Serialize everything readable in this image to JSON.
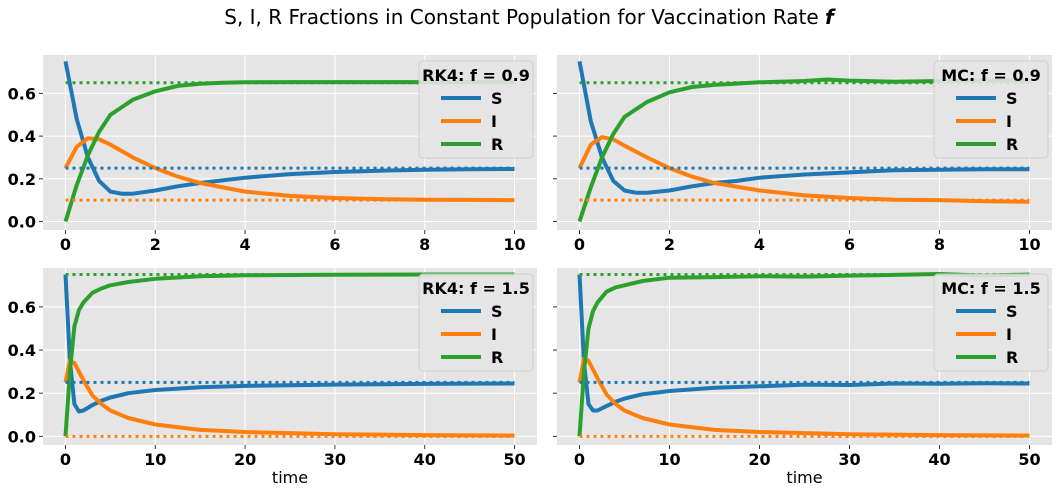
{
  "figure": {
    "title": "S, I, R Fractions in Constant Population for Vaccination Rate ",
    "title_italic": "f"
  },
  "colors": {
    "S": "#1f77b4",
    "I": "#ff7f0e",
    "R": "#2ca02c"
  },
  "chart_data": [
    {
      "type": "line",
      "legend_title": "RK4: f = 0.9",
      "legend_placement": "top-right",
      "xlabel": "",
      "ylabel": "",
      "xlim": [
        -0.5,
        10.5
      ],
      "ylim": [
        -0.04,
        0.78
      ],
      "xticks": [
        0,
        2,
        4,
        6,
        8,
        10
      ],
      "yticks": [
        0.0,
        0.2,
        0.4,
        0.6
      ],
      "grid": true,
      "series": [
        {
          "name": "S",
          "color": "#1f77b4",
          "x": [
            0,
            0.25,
            0.5,
            0.75,
            1,
            1.25,
            1.5,
            2,
            2.5,
            3,
            4,
            5,
            6,
            7,
            8,
            9,
            10
          ],
          "y": [
            0.75,
            0.48,
            0.3,
            0.19,
            0.14,
            0.13,
            0.13,
            0.145,
            0.165,
            0.18,
            0.205,
            0.222,
            0.232,
            0.238,
            0.242,
            0.245,
            0.246
          ]
        },
        {
          "name": "I",
          "color": "#ff7f0e",
          "x": [
            0,
            0.25,
            0.5,
            0.75,
            1,
            1.5,
            2,
            2.5,
            3,
            4,
            5,
            6,
            7,
            8,
            9,
            10
          ],
          "y": [
            0.25,
            0.35,
            0.39,
            0.385,
            0.36,
            0.3,
            0.25,
            0.21,
            0.18,
            0.14,
            0.12,
            0.11,
            0.105,
            0.102,
            0.101,
            0.1
          ]
        },
        {
          "name": "R",
          "color": "#2ca02c",
          "x": [
            0,
            0.25,
            0.5,
            0.75,
            1,
            1.5,
            2,
            2.5,
            3,
            3.5,
            4,
            5,
            6,
            8,
            10
          ],
          "y": [
            0.0,
            0.17,
            0.31,
            0.42,
            0.5,
            0.57,
            0.61,
            0.635,
            0.645,
            0.65,
            0.652,
            0.653,
            0.653,
            0.653,
            0.653
          ]
        },
        {
          "name": "",
          "color": "#1f77b4",
          "dotted": true,
          "x": [
            0,
            10
          ],
          "y": [
            0.25,
            0.25
          ]
        },
        {
          "name": "",
          "color": "#ff7f0e",
          "dotted": true,
          "x": [
            0,
            10
          ],
          "y": [
            0.1,
            0.1
          ]
        },
        {
          "name": "",
          "color": "#2ca02c",
          "dotted": true,
          "x": [
            0,
            10
          ],
          "y": [
            0.65,
            0.65
          ]
        }
      ]
    },
    {
      "type": "line",
      "legend_title": "MC: f = 0.9",
      "legend_placement": "top-right",
      "xlabel": "",
      "ylabel": "",
      "xlim": [
        -0.5,
        10.5
      ],
      "ylim": [
        -0.04,
        0.78
      ],
      "xticks": [
        0,
        2,
        4,
        6,
        8,
        10
      ],
      "yticks": [],
      "grid": true,
      "series": [
        {
          "name": "S",
          "color": "#1f77b4",
          "x": [
            0,
            0.25,
            0.5,
            0.75,
            1,
            1.25,
            1.5,
            2,
            2.5,
            3,
            3.5,
            4,
            5,
            6,
            7,
            8,
            9,
            10
          ],
          "y": [
            0.75,
            0.47,
            0.3,
            0.19,
            0.145,
            0.135,
            0.135,
            0.145,
            0.165,
            0.18,
            0.19,
            0.205,
            0.22,
            0.23,
            0.24,
            0.242,
            0.245,
            0.245
          ]
        },
        {
          "name": "I",
          "color": "#ff7f0e",
          "x": [
            0,
            0.25,
            0.5,
            0.75,
            1,
            1.5,
            2,
            2.5,
            3,
            4,
            5,
            6,
            7,
            8,
            9,
            10
          ],
          "y": [
            0.25,
            0.36,
            0.395,
            0.385,
            0.355,
            0.3,
            0.25,
            0.21,
            0.18,
            0.145,
            0.122,
            0.11,
            0.102,
            0.1,
            0.095,
            0.092
          ]
        },
        {
          "name": "R",
          "color": "#2ca02c",
          "x": [
            0,
            0.25,
            0.5,
            0.75,
            1,
            1.5,
            2,
            2.5,
            3,
            4,
            5,
            5.5,
            6,
            7,
            8,
            9,
            10
          ],
          "y": [
            0.0,
            0.16,
            0.3,
            0.41,
            0.49,
            0.56,
            0.605,
            0.63,
            0.64,
            0.652,
            0.658,
            0.665,
            0.66,
            0.655,
            0.658,
            0.66,
            0.66
          ]
        },
        {
          "name": "",
          "color": "#1f77b4",
          "dotted": true,
          "x": [
            0,
            10
          ],
          "y": [
            0.25,
            0.25
          ]
        },
        {
          "name": "",
          "color": "#ff7f0e",
          "dotted": true,
          "x": [
            0,
            10
          ],
          "y": [
            0.1,
            0.1
          ]
        },
        {
          "name": "",
          "color": "#2ca02c",
          "dotted": true,
          "x": [
            0,
            10
          ],
          "y": [
            0.65,
            0.65
          ]
        }
      ]
    },
    {
      "type": "line",
      "legend_title": "RK4: f = 1.5",
      "legend_placement": "top-right",
      "xlabel": "time",
      "ylabel": "",
      "xlim": [
        -2.5,
        52.5
      ],
      "ylim": [
        -0.04,
        0.78
      ],
      "xticks": [
        0,
        10,
        20,
        30,
        40,
        50
      ],
      "yticks": [
        0.0,
        0.2,
        0.4,
        0.6
      ],
      "grid": true,
      "series": [
        {
          "name": "S",
          "color": "#1f77b4",
          "x": [
            0,
            0.5,
            1,
            1.5,
            2,
            3,
            4,
            5,
            7,
            10,
            15,
            20,
            30,
            40,
            50
          ],
          "y": [
            0.75,
            0.35,
            0.15,
            0.115,
            0.12,
            0.145,
            0.165,
            0.18,
            0.2,
            0.215,
            0.228,
            0.234,
            0.24,
            0.243,
            0.245
          ]
        },
        {
          "name": "I",
          "color": "#ff7f0e",
          "x": [
            0,
            0.5,
            1,
            1.5,
            2,
            3,
            4,
            5,
            7,
            10,
            15,
            20,
            30,
            40,
            50
          ],
          "y": [
            0.25,
            0.35,
            0.34,
            0.3,
            0.26,
            0.19,
            0.15,
            0.12,
            0.085,
            0.055,
            0.03,
            0.02,
            0.01,
            0.006,
            0.004
          ]
        },
        {
          "name": "R",
          "color": "#2ca02c",
          "x": [
            0,
            0.5,
            1,
            1.5,
            2,
            3,
            4,
            5,
            7,
            10,
            15,
            20,
            30,
            40,
            50
          ],
          "y": [
            0.0,
            0.3,
            0.51,
            0.585,
            0.62,
            0.665,
            0.685,
            0.7,
            0.715,
            0.73,
            0.742,
            0.746,
            0.749,
            0.75,
            0.75
          ]
        },
        {
          "name": "",
          "color": "#1f77b4",
          "dotted": true,
          "x": [
            0,
            50
          ],
          "y": [
            0.25,
            0.25
          ]
        },
        {
          "name": "",
          "color": "#ff7f0e",
          "dotted": true,
          "x": [
            0,
            50
          ],
          "y": [
            0.0,
            0.0
          ]
        },
        {
          "name": "",
          "color": "#2ca02c",
          "dotted": true,
          "x": [
            0,
            50
          ],
          "y": [
            0.75,
            0.75
          ]
        }
      ]
    },
    {
      "type": "line",
      "legend_title": "MC: f = 1.5",
      "legend_placement": "top-right",
      "xlabel": "time",
      "ylabel": "",
      "xlim": [
        -2.5,
        52.5
      ],
      "ylim": [
        -0.04,
        0.78
      ],
      "xticks": [
        0,
        10,
        20,
        30,
        40,
        50
      ],
      "yticks": [],
      "grid": true,
      "series": [
        {
          "name": "S",
          "color": "#1f77b4",
          "x": [
            0,
            0.5,
            1,
            1.5,
            2,
            3,
            4,
            5,
            7,
            10,
            15,
            20,
            25,
            30,
            35,
            40,
            45,
            50
          ],
          "y": [
            0.75,
            0.34,
            0.15,
            0.12,
            0.12,
            0.14,
            0.16,
            0.175,
            0.195,
            0.21,
            0.225,
            0.232,
            0.24,
            0.238,
            0.245,
            0.244,
            0.246,
            0.245
          ]
        },
        {
          "name": "I",
          "color": "#ff7f0e",
          "x": [
            0,
            0.5,
            1,
            1.5,
            2,
            3,
            4,
            5,
            7,
            10,
            15,
            20,
            30,
            40,
            50
          ],
          "y": [
            0.25,
            0.36,
            0.35,
            0.31,
            0.27,
            0.195,
            0.15,
            0.12,
            0.085,
            0.055,
            0.03,
            0.02,
            0.01,
            0.006,
            0.004
          ]
        },
        {
          "name": "R",
          "color": "#2ca02c",
          "x": [
            0,
            0.5,
            1,
            1.5,
            2,
            3,
            4,
            5,
            7,
            10,
            15,
            20,
            25,
            30,
            35,
            40,
            45,
            50
          ],
          "y": [
            0.0,
            0.3,
            0.5,
            0.58,
            0.62,
            0.67,
            0.69,
            0.7,
            0.72,
            0.735,
            0.738,
            0.742,
            0.74,
            0.745,
            0.748,
            0.752,
            0.745,
            0.75
          ]
        },
        {
          "name": "",
          "color": "#1f77b4",
          "dotted": true,
          "x": [
            0,
            50
          ],
          "y": [
            0.25,
            0.25
          ]
        },
        {
          "name": "",
          "color": "#ff7f0e",
          "dotted": true,
          "x": [
            0,
            50
          ],
          "y": [
            0.0,
            0.0
          ]
        },
        {
          "name": "",
          "color": "#2ca02c",
          "dotted": true,
          "x": [
            0,
            50
          ],
          "y": [
            0.75,
            0.75
          ]
        }
      ]
    }
  ]
}
